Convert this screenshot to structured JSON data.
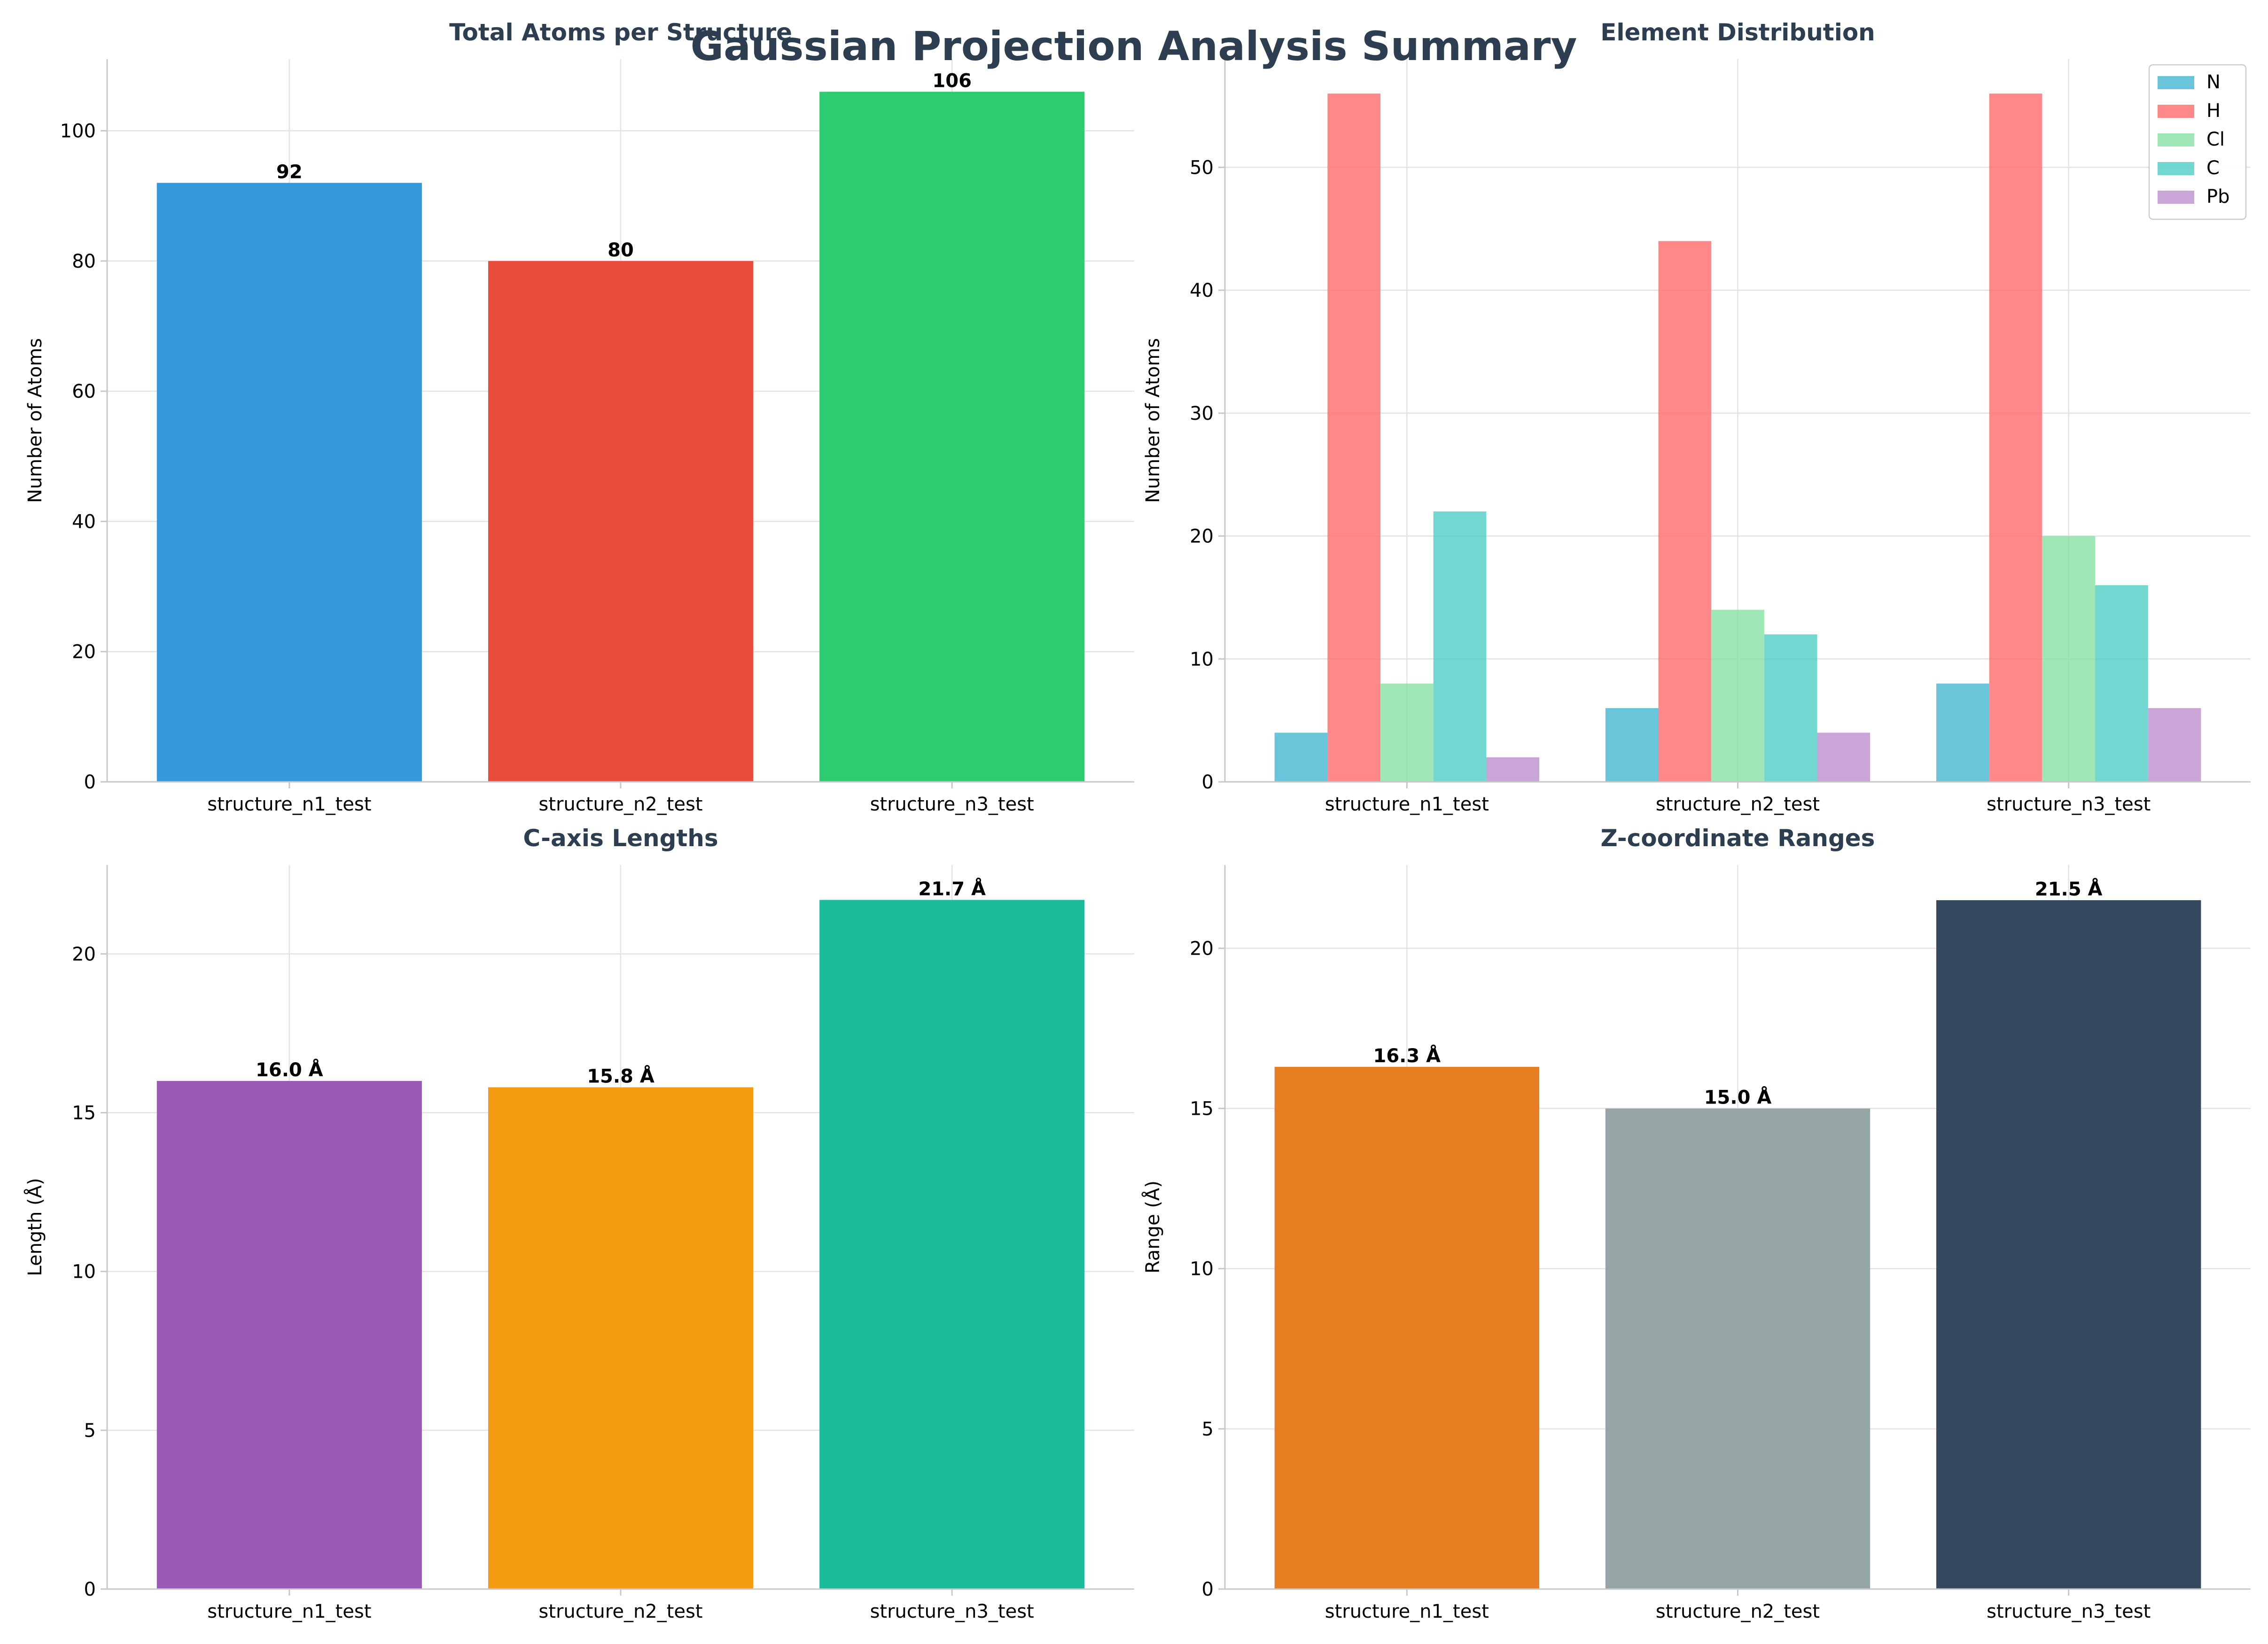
{
  "figure_title": "Gaussian Projection Analysis Summary",
  "chart_data": [
    {
      "id": "total-atoms",
      "type": "bar",
      "title": "Total Atoms per Structure",
      "xlabel": "",
      "ylabel": "Number of Atoms",
      "categories": [
        "structure_n1_test",
        "structure_n2_test",
        "structure_n3_test"
      ],
      "values": [
        92,
        80,
        106
      ],
      "value_labels": [
        "92",
        "80",
        "106"
      ],
      "colors": [
        "#3498db",
        "#e74c3c",
        "#2ecc71"
      ],
      "ylim": [
        0,
        111
      ],
      "yticks": [
        0,
        20,
        40,
        60,
        80,
        100
      ],
      "grid": true
    },
    {
      "id": "element-distribution",
      "type": "bar",
      "title": "Element Distribution",
      "xlabel": "",
      "ylabel": "Number of Atoms",
      "categories": [
        "structure_n1_test",
        "structure_n2_test",
        "structure_n3_test"
      ],
      "series": [
        {
          "name": "N",
          "values": [
            4,
            6,
            8
          ],
          "color": "#45b7d1"
        },
        {
          "name": "H",
          "values": [
            56,
            44,
            56
          ],
          "color": "#ff6b6b"
        },
        {
          "name": "Cl",
          "values": [
            8,
            14,
            20
          ],
          "color": "#88e1a6"
        },
        {
          "name": "C",
          "values": [
            22,
            12,
            16
          ],
          "color": "#4ecdc4"
        },
        {
          "name": "Pb",
          "values": [
            2,
            4,
            6
          ],
          "color": "#bb8fce"
        }
      ],
      "ylim": [
        0,
        58.8
      ],
      "yticks": [
        0,
        10,
        20,
        30,
        40,
        50
      ],
      "legend": "top-right",
      "grid": true
    },
    {
      "id": "c-axis-lengths",
      "type": "bar",
      "title": "C-axis Lengths",
      "xlabel": "",
      "ylabel": "Length (Å)",
      "categories": [
        "structure_n1_test",
        "structure_n2_test",
        "structure_n3_test"
      ],
      "values": [
        16.0,
        15.8,
        21.7
      ],
      "value_labels": [
        "16.0 Å",
        "15.8 Å",
        "21.7 Å"
      ],
      "colors": [
        "#9b59b6",
        "#f39c12",
        "#1abc9c"
      ],
      "ylim": [
        0,
        22.8
      ],
      "yticks": [
        0,
        5,
        10,
        15,
        20
      ],
      "grid": true
    },
    {
      "id": "z-coordinate-ranges",
      "type": "bar",
      "title": "Z-coordinate Ranges",
      "xlabel": "",
      "ylabel": "Range (Å)",
      "categories": [
        "structure_n1_test",
        "structure_n2_test",
        "structure_n3_test"
      ],
      "values": [
        16.3,
        15.0,
        21.5
      ],
      "value_labels": [
        "16.3 Å",
        "15.0 Å",
        "21.5 Å"
      ],
      "colors": [
        "#e67e22",
        "#95a5a6",
        "#34495e"
      ],
      "ylim": [
        0,
        22.6
      ],
      "yticks": [
        0,
        5,
        10,
        15,
        20
      ],
      "grid": true
    }
  ]
}
